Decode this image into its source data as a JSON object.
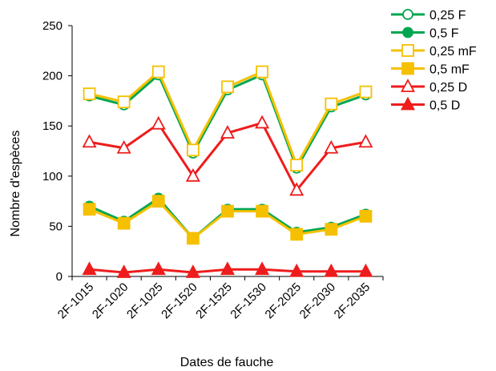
{
  "chart_data": {
    "type": "line",
    "xlabel": "Dates de fauche",
    "ylabel": "Nombre d'espèces",
    "ylim": [
      0,
      250
    ],
    "yticks": [
      0,
      50,
      100,
      150,
      200,
      250
    ],
    "grid": false,
    "legend_position": "top-right",
    "categories": [
      "2F-1015",
      "2F-1020",
      "2F-1025",
      "2F-1520",
      "2F-1525",
      "2F-1530",
      "2F-2025",
      "2F-2030",
      "2F-2035"
    ],
    "series": [
      {
        "name": "0,25 F",
        "color": "#00a651",
        "marker": "circle",
        "filled": false,
        "values": [
          180,
          171,
          201,
          123,
          186,
          201,
          108,
          169,
          181
        ]
      },
      {
        "name": "0,5 F",
        "color": "#00a651",
        "marker": "circle",
        "filled": true,
        "values": [
          70,
          55,
          78,
          38,
          67,
          67,
          44,
          49,
          62
        ]
      },
      {
        "name": "0,25 mF",
        "color": "#f5c000",
        "marker": "square",
        "filled": false,
        "values": [
          182,
          174,
          204,
          126,
          189,
          204,
          111,
          172,
          184
        ]
      },
      {
        "name": "0,5 mF",
        "color": "#f5c000",
        "marker": "square",
        "filled": true,
        "values": [
          67,
          53,
          75,
          38,
          65,
          65,
          42,
          47,
          60
        ]
      },
      {
        "name": "0,25 D",
        "color": "#ee1c1c",
        "marker": "triangle",
        "filled": false,
        "values": [
          134,
          128,
          152,
          100,
          143,
          153,
          86,
          128,
          134
        ]
      },
      {
        "name": "0,5 D",
        "color": "#ee1c1c",
        "marker": "triangle",
        "filled": true,
        "values": [
          7,
          4,
          7,
          4,
          7,
          7,
          5,
          5,
          5
        ]
      }
    ]
  }
}
